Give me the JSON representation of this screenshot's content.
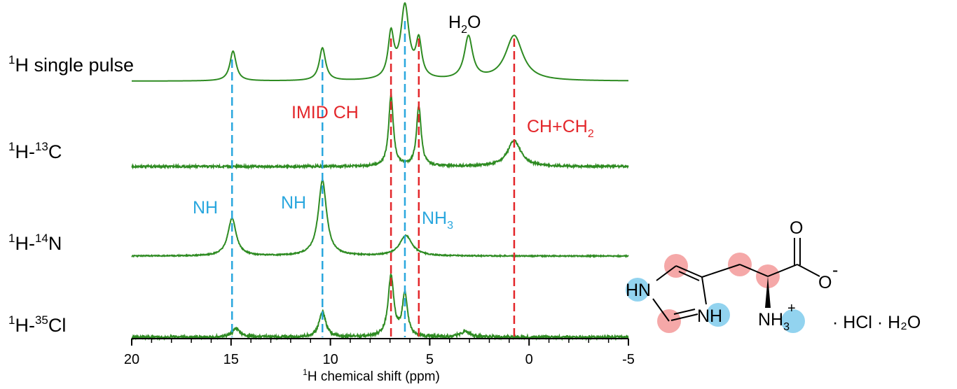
{
  "chart_data": {
    "type": "line",
    "xlabel_sup": "1",
    "xlabel_text": "H chemical shift (ppm)",
    "xlim": [
      20,
      -5
    ],
    "xticks": [
      20,
      15,
      10,
      5,
      0,
      -5
    ],
    "xtick_labels": [
      "20",
      "15",
      "10",
      "5",
      "0",
      "-5"
    ],
    "colors": {
      "spectrum": "#2e8b22",
      "red_line": "#e3262a",
      "blue_line": "#2aa7de",
      "text": "#000000"
    },
    "series": [
      {
        "sup1": "1",
        "sup2": "",
        "label_main": "H single pulse",
        "label_nucleus": "",
        "peaks": [
          {
            "x": 14.9,
            "h": 0.41,
            "w": 0.38
          },
          {
            "x": 10.4,
            "h": 0.45,
            "w": 0.38
          },
          {
            "x": 6.95,
            "h": 0.6,
            "w": 0.35
          },
          {
            "x": 6.25,
            "h": 1.0,
            "w": 0.5
          },
          {
            "x": 5.55,
            "h": 0.5,
            "w": 0.35
          },
          {
            "x": 3.05,
            "h": 0.59,
            "w": 0.5
          },
          {
            "x": 0.75,
            "h": 0.62,
            "w": 1.05
          }
        ]
      },
      {
        "sup1": "1",
        "sup2": "13",
        "label_main": "H-",
        "label_nucleus": "C",
        "peaks": [
          {
            "x": 6.95,
            "h": 0.98,
            "w": 0.28
          },
          {
            "x": 5.55,
            "h": 0.83,
            "w": 0.28
          },
          {
            "x": 0.75,
            "h": 0.36,
            "w": 0.8
          }
        ]
      },
      {
        "sup1": "1",
        "sup2": "14",
        "label_main": "H-",
        "label_nucleus": "N",
        "peaks": [
          {
            "x": 14.95,
            "h": 0.5,
            "w": 0.5
          },
          {
            "x": 10.4,
            "h": 1.0,
            "w": 0.5
          },
          {
            "x": 6.2,
            "h": 0.27,
            "w": 0.75
          }
        ]
      },
      {
        "sup1": "1",
        "sup2": "35",
        "label_main": "H-",
        "label_nucleus": "Cl",
        "peaks": [
          {
            "x": 14.75,
            "h": 0.12,
            "w": 0.5
          },
          {
            "x": 10.4,
            "h": 0.37,
            "w": 0.4
          },
          {
            "x": 6.95,
            "h": 0.86,
            "w": 0.35
          },
          {
            "x": 6.25,
            "h": 0.62,
            "w": 0.3
          },
          {
            "x": 3.2,
            "h": 0.08,
            "w": 0.6
          }
        ]
      }
    ],
    "red_lines_x": [
      6.95,
      5.55,
      0.75
    ],
    "blue_lines_x": [
      14.95,
      10.4,
      6.25
    ],
    "annotations": [
      {
        "text": "H",
        "sub": "2",
        "tail": "O",
        "color": "black"
      },
      {
        "text": "IMID CH",
        "sub": "",
        "tail": "",
        "color": "red"
      },
      {
        "text": "CH+CH",
        "sub": "2",
        "tail": "",
        "color": "red"
      },
      {
        "text": "NH",
        "sub": "",
        "tail": "",
        "color": "blue"
      },
      {
        "text": "NH",
        "sub": "",
        "tail": "",
        "color": "blue"
      },
      {
        "text": "NH",
        "sub": "3",
        "tail": "",
        "color": "blue"
      }
    ]
  },
  "molecule": {
    "atoms": {
      "O_top": "O",
      "O_minus": "O",
      "O_minus_charge": "-",
      "HN_ring": "HN",
      "NH_ring": "NH",
      "NH3_label": "NH",
      "NH3_sub": "3",
      "NH3_charge": "+"
    },
    "salt": "· HCl  · H₂O",
    "highlight_colors": {
      "carbon": "#f28b8b",
      "nitrogen": "#7fcbec"
    }
  }
}
